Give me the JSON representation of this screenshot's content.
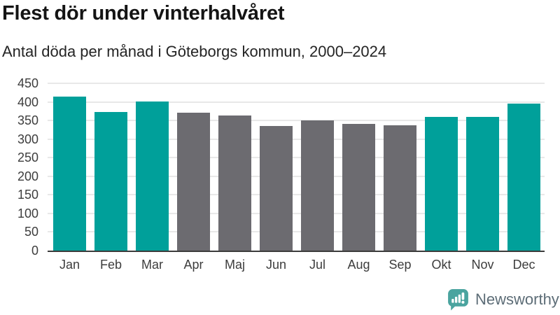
{
  "header": {
    "title": "Flest dör under vinterhalvåret",
    "subtitle": "Antal döda per månad i Göteborgs kommun, 2000–2024"
  },
  "chart_data": {
    "type": "bar",
    "title": "Flest dör under vinterhalvåret",
    "subtitle": "Antal döda per månad i Göteborgs kommun, 2000–2024",
    "categories": [
      "Jan",
      "Feb",
      "Mar",
      "Apr",
      "Maj",
      "Jun",
      "Jul",
      "Aug",
      "Sep",
      "Okt",
      "Nov",
      "Dec"
    ],
    "values": [
      415,
      373,
      402,
      371,
      363,
      335,
      351,
      341,
      338,
      359,
      359,
      396
    ],
    "bar_groups": [
      "winter",
      "winter",
      "winter",
      "summer",
      "summer",
      "summer",
      "summer",
      "summer",
      "summer",
      "winter",
      "winter",
      "winter"
    ],
    "palette": {
      "winter": "#00A09A",
      "summer": "#6C6B70"
    },
    "xlabel": "",
    "ylabel": "",
    "ylim": [
      0,
      450
    ],
    "y_ticks": [
      0,
      50,
      100,
      150,
      200,
      250,
      300,
      350,
      400,
      450
    ],
    "grid": "horizontal",
    "legend": "none"
  },
  "branding": {
    "name": "Newsworthy",
    "logo_icon": "newsworthy-bubble-chart-icon",
    "logo_color": "#4AA49F",
    "text_color": "#5D6D77"
  },
  "colors": {
    "highlight_teal": "#00A09A",
    "neutral_gray": "#6C6B70",
    "gridline": "#E8E8E8",
    "axis_line": "#3C3C3C",
    "axis_label": "#3D3D3D",
    "title": "#141414",
    "subtitle": "#242424",
    "background": "#FFFFFF"
  }
}
